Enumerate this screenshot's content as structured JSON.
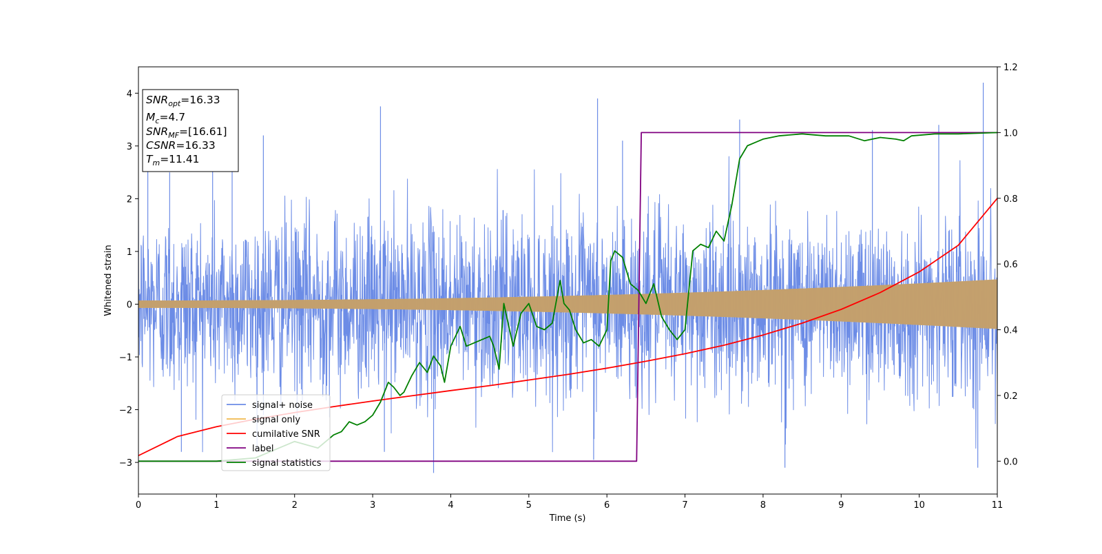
{
  "chart_data": {
    "type": "line",
    "title": "",
    "xlabel": "Time (s)",
    "ylabel": "Whitened strain",
    "xlim": [
      0,
      11
    ],
    "ylim_left": [
      -3.6,
      4.5
    ],
    "ylim_right": [
      -0.1,
      1.2
    ],
    "xticks": [
      "0",
      "1",
      "2",
      "3",
      "4",
      "5",
      "6",
      "7",
      "8",
      "9",
      "10",
      "11"
    ],
    "yticks_left": [
      "−3",
      "−2",
      "−1",
      "0",
      "1",
      "2",
      "3",
      "4"
    ],
    "yticks_right": [
      "0.0",
      "0.2",
      "0.4",
      "0.6",
      "0.8",
      "1.0",
      "1.2"
    ],
    "grid": false,
    "legend_position": "lower-left",
    "info_box": {
      "position": "top-left",
      "lines": [
        {
          "name": "SNR",
          "sub": "opt",
          "value": "=16.33"
        },
        {
          "name": "M",
          "sub": "c",
          "value": "=4.7"
        },
        {
          "name": "SNR",
          "sub": "MF",
          "value": "=[16.61]"
        },
        {
          "name": "CSNR",
          "sub": "",
          "value": "=16.33"
        },
        {
          "name": "T",
          "sub": "m",
          "value": "=11.41"
        }
      ]
    },
    "series": [
      {
        "name": "signal+ noise",
        "color": "#6c8ce6",
        "axis": "left",
        "kind": "noise",
        "std": 0.85,
        "spike_peaks": [
          {
            "x": 0.12,
            "y": 2.6
          },
          {
            "x": 0.4,
            "y": 2.5
          },
          {
            "x": 0.95,
            "y": 2.7
          },
          {
            "x": 1.2,
            "y": 2.7
          },
          {
            "x": 1.6,
            "y": 3.2
          },
          {
            "x": 3.1,
            "y": 3.75
          },
          {
            "x": 3.15,
            "y": -2.8
          },
          {
            "x": 3.78,
            "y": -3.2
          },
          {
            "x": 5.88,
            "y": 3.9
          },
          {
            "x": 5.83,
            "y": -2.95
          },
          {
            "x": 6.2,
            "y": 3.1
          },
          {
            "x": 7.7,
            "y": 3.5
          },
          {
            "x": 8.28,
            "y": -3.1
          },
          {
            "x": 10.25,
            "y": 3.4
          },
          {
            "x": 10.82,
            "y": 4.2
          },
          {
            "x": 10.75,
            "y": -3.1
          },
          {
            "x": 0.55,
            "y": -2.8
          },
          {
            "x": 9.4,
            "y": 3.3
          }
        ]
      },
      {
        "name": "signal only",
        "color": "#f0b84c",
        "axis": "left",
        "kind": "chirp",
        "amplitude_start": 0.07,
        "amplitude_end": 0.47
      },
      {
        "name": "cumilative SNR",
        "color": "#ff0000",
        "axis": "right",
        "x": [
          0,
          0.5,
          1,
          1.5,
          2,
          2.5,
          3,
          3.5,
          4,
          4.5,
          5,
          5.5,
          6,
          6.5,
          7,
          7.5,
          8,
          8.5,
          9,
          9.5,
          10,
          10.5,
          11
        ],
        "y": [
          0.017,
          0.075,
          0.105,
          0.128,
          0.148,
          0.166,
          0.183,
          0.199,
          0.215,
          0.23,
          0.247,
          0.264,
          0.283,
          0.304,
          0.327,
          0.353,
          0.384,
          0.42,
          0.462,
          0.513,
          0.576,
          0.657,
          0.8
        ]
      },
      {
        "name": "label",
        "color": "#800080",
        "axis": "right",
        "x": [
          0,
          6.38,
          6.44,
          11
        ],
        "y": [
          0,
          0,
          1,
          1
        ]
      },
      {
        "name": "signal statistics",
        "color": "#008000",
        "axis": "right",
        "x": [
          0,
          0.5,
          1,
          1.5,
          2,
          2.3,
          2.5,
          2.6,
          2.7,
          2.8,
          2.9,
          3.0,
          3.1,
          3.2,
          3.27,
          3.35,
          3.4,
          3.5,
          3.6,
          3.7,
          3.78,
          3.87,
          3.92,
          4.0,
          4.12,
          4.2,
          4.3,
          4.4,
          4.5,
          4.55,
          4.62,
          4.68,
          4.8,
          4.9,
          5.0,
          5.1,
          5.2,
          5.3,
          5.4,
          5.45,
          5.52,
          5.6,
          5.7,
          5.8,
          5.9,
          6.0,
          6.05,
          6.1,
          6.2,
          6.3,
          6.4,
          6.5,
          6.6,
          6.7,
          6.8,
          6.9,
          7.0,
          7.1,
          7.2,
          7.3,
          7.4,
          7.5,
          7.6,
          7.7,
          7.8,
          7.9,
          8.0,
          8.2,
          8.5,
          8.8,
          9.1,
          9.3,
          9.5,
          9.7,
          9.8,
          9.9,
          10.2,
          10.5,
          11.0
        ],
        "y": [
          0,
          0,
          0,
          0.01,
          0.06,
          0.04,
          0.08,
          0.09,
          0.12,
          0.11,
          0.12,
          0.14,
          0.18,
          0.24,
          0.225,
          0.2,
          0.21,
          0.26,
          0.3,
          0.27,
          0.32,
          0.29,
          0.24,
          0.35,
          0.41,
          0.35,
          0.36,
          0.37,
          0.38,
          0.35,
          0.28,
          0.48,
          0.35,
          0.45,
          0.48,
          0.41,
          0.4,
          0.42,
          0.55,
          0.48,
          0.46,
          0.4,
          0.36,
          0.37,
          0.35,
          0.4,
          0.61,
          0.64,
          0.62,
          0.54,
          0.52,
          0.48,
          0.54,
          0.44,
          0.4,
          0.37,
          0.4,
          0.64,
          0.66,
          0.65,
          0.7,
          0.67,
          0.78,
          0.92,
          0.96,
          0.97,
          0.98,
          0.99,
          0.996,
          0.99,
          0.99,
          0.975,
          0.985,
          0.98,
          0.975,
          0.99,
          0.996,
          0.996,
          1.0
        ]
      }
    ]
  }
}
